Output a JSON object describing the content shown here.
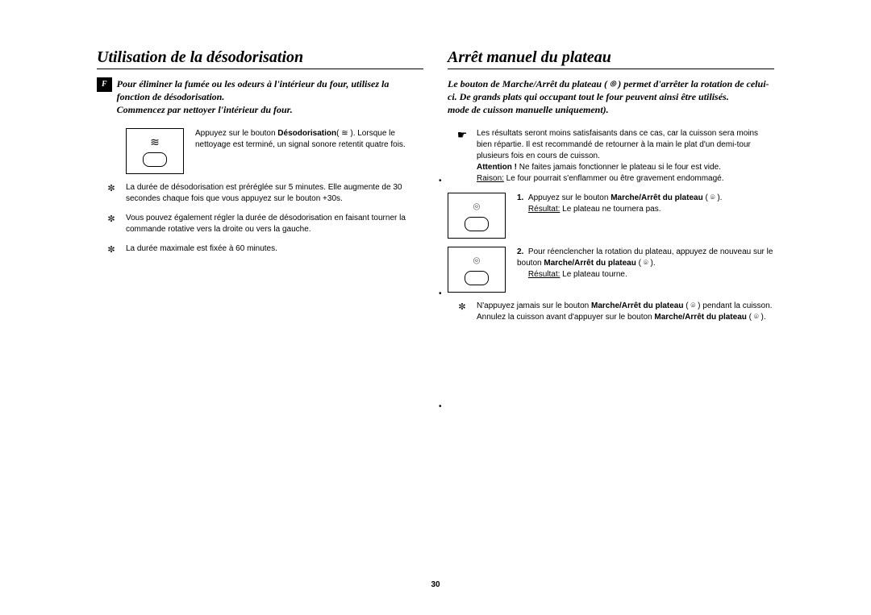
{
  "page_number": "30",
  "lang_badge": "F",
  "left": {
    "title": "Utilisation de la désodorisation",
    "intro_1": "Pour éliminer la fumée ou les odeurs à l'intérieur du four, utilisez la fonction de désodorisation.",
    "intro_2": "Commencez par nettoyer l'intérieur du four.",
    "step_text_pre": "Appuyez sur le bouton ",
    "step_bold": "Désodorisation",
    "step_text_post": "( ≋ ). Lorsque le nettoyage est terminé, un signal sonore retentit quatre fois.",
    "note1": "La durée de désodorisation est préréglée sur 5 minutes. Elle augmente de 30 secondes chaque fois que vous appuyez sur le bouton +30s.",
    "note2": "Vous pouvez également régler la durée de désodorisation en faisant tourner la commande rotative vers la droite ou vers la gauche.",
    "note3": "La durée maximale est fixée à 60 minutes."
  },
  "right": {
    "title": "Arrêt manuel du plateau",
    "intro_1": "Le bouton de Marche/Arrêt du plateau ( ⌾ ) permet d'arrêter la rotation de celui-ci. De grands plats qui occupant tout le four peuvent ainsi être utilisés.",
    "intro_2": "mode de cuisson manuelle uniquement).",
    "hand_text": "Les résultats seront moins satisfaisants dans ce cas, car la cuisson sera moins bien répartie. Il est recommandé de retourner à la main le plat d'un demi-tour plusieurs fois en cours de cuisson.",
    "attention_label": "Attention !",
    "attention_text": " Ne faites jamais fonctionner le plateau si le four est vide.",
    "raison_label": "Raison:",
    "raison_text": "  Le four pourrait s'enflammer ou être gravement endommagé.",
    "step1_num": "1.",
    "step1_pre": "Appuyez sur le bouton ",
    "step1_bold": "Marche/Arrêt du plateau",
    "step1_post": " ( ⌾ ).",
    "step1_res_label": "Résultat:",
    "step1_res_text": "   Le plateau ne tournera pas.",
    "step2_num": "2.",
    "step2_pre": "Pour réenclencher la rotation du plateau, appuyez de nouveau sur le bouton ",
    "step2_bold": "Marche/Arrêt du plateau",
    "step2_post": " ( ⌾ ).",
    "step2_res_label": "Résultat:",
    "step2_res_text": "   Le plateau tourne.",
    "warn_pre": "N'appuyez jamais sur le bouton ",
    "warn_bold1": "Marche/Arrêt du plateau",
    "warn_mid": " ( ⌾ ) pendant la cuisson. Annulez la cuisson avant d'appuyer sur le bouton ",
    "warn_bold2": "Marche/Arrêt du plateau",
    "warn_post": " ( ⌾ )."
  }
}
